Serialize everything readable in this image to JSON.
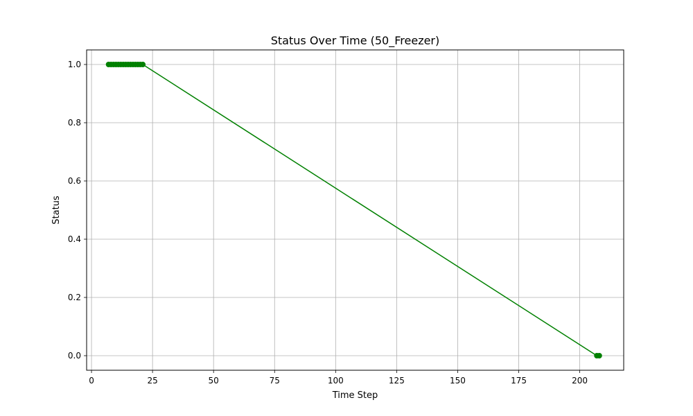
{
  "chart_data": {
    "type": "line",
    "title": "Status Over Time (50_Freezer)",
    "xlabel": "Time Step",
    "ylabel": "Status",
    "xlim": [
      -2,
      218
    ],
    "ylim": [
      -0.05,
      1.05
    ],
    "xticks": [
      0,
      25,
      50,
      75,
      100,
      125,
      150,
      175,
      200
    ],
    "yticks": [
      0.0,
      0.2,
      0.4,
      0.6,
      0.8,
      1.0
    ],
    "ytick_labels": [
      "0.0",
      "0.2",
      "0.4",
      "0.6",
      "0.8",
      "1.0"
    ],
    "grid": true,
    "color": "#008000",
    "marker": "circle",
    "series": [
      {
        "x": [
          7,
          8,
          9,
          10,
          11,
          12,
          13,
          14,
          15,
          16,
          17,
          18,
          19,
          20,
          21,
          207,
          208
        ],
        "y": [
          1,
          1,
          1,
          1,
          1,
          1,
          1,
          1,
          1,
          1,
          1,
          1,
          1,
          1,
          1,
          0,
          0
        ]
      }
    ]
  }
}
